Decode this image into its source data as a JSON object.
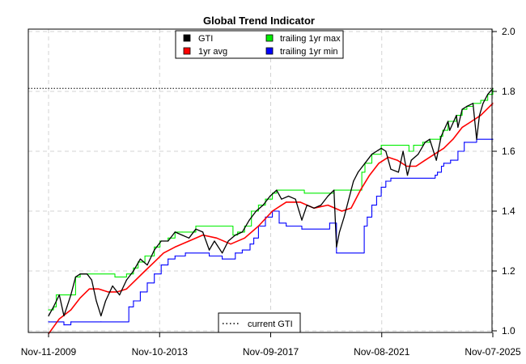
{
  "chart_data": {
    "type": "line",
    "title": "Global Trend Indicator",
    "xlabel": "",
    "ylabel": "",
    "x_ticks": [
      "Nov-11-2009",
      "Nov-10-2013",
      "Nov-09-2017",
      "Nov-08-2021",
      "Nov-07-2025"
    ],
    "xlim": [
      "2009-11-11",
      "2025-11-07"
    ],
    "y_axis_side": "right",
    "ylim": [
      1.0,
      2.0
    ],
    "y_ticks": [
      "1.0",
      "1.2",
      "1.4",
      "1.6",
      "1.8",
      "2.0"
    ],
    "grid": true,
    "current_gti": 1.81,
    "series": [
      {
        "name": "GTI",
        "color": "#000000",
        "points": [
          [
            "2009-11-11",
            1.05
          ],
          [
            "2010-01-15",
            1.08
          ],
          [
            "2010-04-01",
            1.12
          ],
          [
            "2010-06-01",
            1.05
          ],
          [
            "2010-07-10",
            1.08
          ],
          [
            "2010-09-01",
            1.12
          ],
          [
            "2010-11-01",
            1.18
          ],
          [
            "2011-01-01",
            1.19
          ],
          [
            "2011-04-01",
            1.19
          ],
          [
            "2011-06-01",
            1.17
          ],
          [
            "2011-08-01",
            1.1
          ],
          [
            "2011-10-01",
            1.05
          ],
          [
            "2011-12-01",
            1.1
          ],
          [
            "2012-03-01",
            1.15
          ],
          [
            "2012-06-01",
            1.12
          ],
          [
            "2012-09-01",
            1.17
          ],
          [
            "2012-12-01",
            1.2
          ],
          [
            "2013-03-01",
            1.24
          ],
          [
            "2013-06-01",
            1.22
          ],
          [
            "2013-09-01",
            1.27
          ],
          [
            "2013-12-01",
            1.3
          ],
          [
            "2014-03-01",
            1.3
          ],
          [
            "2014-06-01",
            1.33
          ],
          [
            "2014-09-01",
            1.32
          ],
          [
            "2014-12-01",
            1.31
          ],
          [
            "2015-03-01",
            1.34
          ],
          [
            "2015-06-01",
            1.33
          ],
          [
            "2015-08-25",
            1.27
          ],
          [
            "2015-11-01",
            1.3
          ],
          [
            "2016-02-11",
            1.26
          ],
          [
            "2016-05-01",
            1.3
          ],
          [
            "2016-08-01",
            1.32
          ],
          [
            "2016-11-01",
            1.33
          ],
          [
            "2017-02-01",
            1.37
          ],
          [
            "2017-05-01",
            1.4
          ],
          [
            "2017-08-01",
            1.42
          ],
          [
            "2017-11-01",
            1.45
          ],
          [
            "2018-01-26",
            1.47
          ],
          [
            "2018-04-01",
            1.44
          ],
          [
            "2018-07-01",
            1.45
          ],
          [
            "2018-10-01",
            1.44
          ],
          [
            "2018-12-24",
            1.37
          ],
          [
            "2019-03-01",
            1.42
          ],
          [
            "2019-06-01",
            1.41
          ],
          [
            "2019-09-01",
            1.42
          ],
          [
            "2019-12-01",
            1.45
          ],
          [
            "2020-02-19",
            1.47
          ],
          [
            "2020-03-23",
            1.28
          ],
          [
            "2020-05-01",
            1.33
          ],
          [
            "2020-07-01",
            1.38
          ],
          [
            "2020-09-01",
            1.44
          ],
          [
            "2020-11-01",
            1.5
          ],
          [
            "2021-01-01",
            1.53
          ],
          [
            "2021-04-01",
            1.56
          ],
          [
            "2021-07-01",
            1.59
          ],
          [
            "2021-11-01",
            1.61
          ],
          [
            "2022-01-01",
            1.6
          ],
          [
            "2022-03-08",
            1.54
          ],
          [
            "2022-06-16",
            1.53
          ],
          [
            "2022-08-15",
            1.6
          ],
          [
            "2022-10-12",
            1.52
          ],
          [
            "2022-12-01",
            1.57
          ],
          [
            "2023-03-01",
            1.59
          ],
          [
            "2023-06-01",
            1.63
          ],
          [
            "2023-07-31",
            1.64
          ],
          [
            "2023-10-27",
            1.57
          ],
          [
            "2023-12-29",
            1.65
          ],
          [
            "2024-03-28",
            1.7
          ],
          [
            "2024-04-19",
            1.67
          ],
          [
            "2024-07-16",
            1.72
          ],
          [
            "2024-08-05",
            1.68
          ],
          [
            "2024-09-30",
            1.74
          ],
          [
            "2024-12-01",
            1.75
          ],
          [
            "2025-02-19",
            1.76
          ],
          [
            "2025-04-08",
            1.64
          ],
          [
            "2025-05-15",
            1.72
          ],
          [
            "2025-07-01",
            1.76
          ],
          [
            "2025-09-01",
            1.79
          ],
          [
            "2025-11-07",
            1.81
          ]
        ]
      },
      {
        "name": "1yr avg",
        "color": "#ff0000",
        "points": [
          [
            "2009-11-11",
            0.99
          ],
          [
            "2010-04-01",
            1.04
          ],
          [
            "2010-09-01",
            1.07
          ],
          [
            "2011-01-01",
            1.11
          ],
          [
            "2011-05-01",
            1.14
          ],
          [
            "2011-09-01",
            1.14
          ],
          [
            "2012-01-01",
            1.13
          ],
          [
            "2012-05-01",
            1.13
          ],
          [
            "2012-09-01",
            1.14
          ],
          [
            "2013-01-01",
            1.17
          ],
          [
            "2013-05-01",
            1.2
          ],
          [
            "2013-09-01",
            1.23
          ],
          [
            "2014-01-01",
            1.26
          ],
          [
            "2014-06-01",
            1.28
          ],
          [
            "2014-12-01",
            1.3
          ],
          [
            "2015-06-01",
            1.32
          ],
          [
            "2015-12-01",
            1.31
          ],
          [
            "2016-06-01",
            1.29
          ],
          [
            "2016-12-01",
            1.31
          ],
          [
            "2017-06-01",
            1.35
          ],
          [
            "2017-12-01",
            1.4
          ],
          [
            "2018-06-01",
            1.43
          ],
          [
            "2018-12-01",
            1.43
          ],
          [
            "2019-06-01",
            1.41
          ],
          [
            "2019-12-01",
            1.42
          ],
          [
            "2020-06-01",
            1.4
          ],
          [
            "2020-10-01",
            1.41
          ],
          [
            "2021-02-01",
            1.47
          ],
          [
            "2021-06-01",
            1.52
          ],
          [
            "2021-10-01",
            1.56
          ],
          [
            "2022-02-01",
            1.58
          ],
          [
            "2022-06-01",
            1.57
          ],
          [
            "2022-10-01",
            1.55
          ],
          [
            "2023-02-01",
            1.55
          ],
          [
            "2023-06-01",
            1.57
          ],
          [
            "2023-10-01",
            1.59
          ],
          [
            "2024-02-01",
            1.61
          ],
          [
            "2024-06-01",
            1.64
          ],
          [
            "2024-10-01",
            1.68
          ],
          [
            "2025-02-01",
            1.7
          ],
          [
            "2025-06-01",
            1.72
          ],
          [
            "2025-11-07",
            1.76
          ]
        ]
      },
      {
        "name": "trailing 1yr max",
        "color": "#00ee00",
        "step": true,
        "points": [
          [
            "2009-11-11",
            1.07
          ],
          [
            "2010-01-15",
            1.08
          ],
          [
            "2010-02-20",
            1.12
          ],
          [
            "2010-11-01",
            1.18
          ],
          [
            "2011-01-01",
            1.19
          ],
          [
            "2012-04-01",
            1.18
          ],
          [
            "2012-09-01",
            1.19
          ],
          [
            "2012-12-01",
            1.21
          ],
          [
            "2013-02-01",
            1.23
          ],
          [
            "2013-05-01",
            1.25
          ],
          [
            "2013-09-01",
            1.28
          ],
          [
            "2013-11-15",
            1.3
          ],
          [
            "2014-03-01",
            1.31
          ],
          [
            "2014-06-01",
            1.33
          ],
          [
            "2014-09-01",
            1.33
          ],
          [
            "2015-03-01",
            1.35
          ],
          [
            "2016-07-01",
            1.32
          ],
          [
            "2016-09-01",
            1.33
          ],
          [
            "2016-12-01",
            1.35
          ],
          [
            "2017-03-01",
            1.4
          ],
          [
            "2017-06-01",
            1.42
          ],
          [
            "2017-09-01",
            1.44
          ],
          [
            "2017-12-01",
            1.46
          ],
          [
            "2018-01-26",
            1.47
          ],
          [
            "2019-01-26",
            1.46
          ],
          [
            "2020-02-19",
            1.47
          ],
          [
            "2021-02-19",
            1.53
          ],
          [
            "2021-04-01",
            1.56
          ],
          [
            "2021-07-01",
            1.59
          ],
          [
            "2021-11-01",
            1.62
          ],
          [
            "2022-11-01",
            1.6
          ],
          [
            "2023-01-01",
            1.62
          ],
          [
            "2023-05-01",
            1.63
          ],
          [
            "2023-07-31",
            1.64
          ],
          [
            "2023-12-15",
            1.65
          ],
          [
            "2024-01-20",
            1.67
          ],
          [
            "2024-03-28",
            1.7
          ],
          [
            "2024-07-16",
            1.72
          ],
          [
            "2024-09-30",
            1.74
          ],
          [
            "2024-12-01",
            1.75
          ],
          [
            "2025-02-19",
            1.76
          ],
          [
            "2025-06-01",
            1.77
          ],
          [
            "2025-09-01",
            1.79
          ],
          [
            "2025-11-07",
            1.81
          ]
        ]
      },
      {
        "name": "trailing 1yr min",
        "color": "#0000ff",
        "step": true,
        "points": [
          [
            "2009-11-11",
            1.03
          ],
          [
            "2010-03-01",
            1.03
          ],
          [
            "2010-06-01",
            1.02
          ],
          [
            "2010-09-01",
            1.03
          ],
          [
            "2011-10-01",
            1.03
          ],
          [
            "2012-10-01",
            1.08
          ],
          [
            "2012-12-01",
            1.1
          ],
          [
            "2013-03-01",
            1.13
          ],
          [
            "2013-06-01",
            1.16
          ],
          [
            "2013-09-01",
            1.19
          ],
          [
            "2013-12-01",
            1.22
          ],
          [
            "2014-03-01",
            1.24
          ],
          [
            "2014-06-01",
            1.25
          ],
          [
            "2014-10-15",
            1.26
          ],
          [
            "2015-08-25",
            1.25
          ],
          [
            "2016-02-11",
            1.24
          ],
          [
            "2016-08-01",
            1.26
          ],
          [
            "2016-11-01",
            1.27
          ],
          [
            "2017-02-11",
            1.29
          ],
          [
            "2017-04-01",
            1.31
          ],
          [
            "2017-06-01",
            1.35
          ],
          [
            "2017-09-01",
            1.38
          ],
          [
            "2017-12-01",
            1.4
          ],
          [
            "2018-03-01",
            1.36
          ],
          [
            "2018-06-01",
            1.35
          ],
          [
            "2018-12-24",
            1.34
          ],
          [
            "2019-12-24",
            1.36
          ],
          [
            "2020-03-23",
            1.26
          ],
          [
            "2021-03-23",
            1.35
          ],
          [
            "2021-05-01",
            1.38
          ],
          [
            "2021-07-01",
            1.42
          ],
          [
            "2021-09-01",
            1.45
          ],
          [
            "2021-11-01",
            1.48
          ],
          [
            "2022-01-01",
            1.5
          ],
          [
            "2022-03-08",
            1.51
          ],
          [
            "2023-10-12",
            1.52
          ],
          [
            "2023-11-10",
            1.53
          ],
          [
            "2024-01-01",
            1.55
          ],
          [
            "2024-02-01",
            1.56
          ],
          [
            "2024-05-01",
            1.57
          ],
          [
            "2024-08-05",
            1.6
          ],
          [
            "2024-10-27",
            1.63
          ],
          [
            "2025-04-08",
            1.64
          ],
          [
            "2025-11-07",
            1.64
          ]
        ]
      }
    ],
    "legend": {
      "position": "top",
      "items": [
        {
          "label": "GTI",
          "color": "#000000"
        },
        {
          "label": "1yr avg",
          "color": "#ff0000"
        },
        {
          "label": "trailing 1yr max",
          "color": "#00ee00"
        },
        {
          "label": "trailing 1yr min",
          "color": "#0000ff"
        }
      ]
    },
    "current_legend": {
      "position": "bottom",
      "label": "current GTI"
    }
  }
}
